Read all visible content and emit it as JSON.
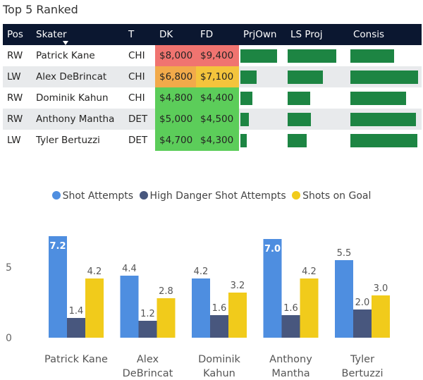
{
  "table_title": "Top 5 Ranked",
  "table": {
    "headers": [
      "Pos",
      "Skater",
      "T",
      "DK",
      "FD",
      "PrjOwn",
      "LS Proj",
      "Consis"
    ],
    "rows": [
      {
        "pos": "RW",
        "skater": "Patrick Kane",
        "team": "CHI",
        "dk": "$8,000",
        "fd": "$9,400",
        "dk_color": "#f07470",
        "fd_color": "#f07470",
        "prjown": 0.78,
        "lsproj": 0.78,
        "consis": 0.6
      },
      {
        "pos": "LW",
        "skater": "Alex DeBrincat",
        "team": "CHI",
        "dk": "$6,800",
        "fd": "$7,100",
        "dk_color": "#f2aa4a",
        "fd_color": "#f4c43c",
        "prjown": 0.34,
        "lsproj": 0.56,
        "consis": 0.93
      },
      {
        "pos": "RW",
        "skater": "Dominik Kahun",
        "team": "CHI",
        "dk": "$4,800",
        "fd": "$4,400",
        "dk_color": "#5ccd5a",
        "fd_color": "#5ccd5a",
        "prjown": 0.26,
        "lsproj": 0.36,
        "consis": 0.77
      },
      {
        "pos": "RW",
        "skater": "Anthony Mantha",
        "team": "DET",
        "dk": "$5,000",
        "fd": "$4,500",
        "dk_color": "#5ccd5a",
        "fd_color": "#5ccd5a",
        "prjown": 0.18,
        "lsproj": 0.37,
        "consis": 0.9
      },
      {
        "pos": "LW",
        "skater": "Tyler Bertuzzi",
        "team": "DET",
        "dk": "$4,700",
        "fd": "$4,300",
        "dk_color": "#5ccd5a",
        "fd_color": "#5ccd5a",
        "prjown": 0.13,
        "lsproj": 0.3,
        "consis": 0.92
      }
    ]
  },
  "chart_data": {
    "type": "bar",
    "title": "",
    "xlabel": "",
    "ylabel": "",
    "categories": [
      "Patrick Kane",
      "Alex DeBrincat",
      "Dominik Kahun",
      "Anthony Mantha",
      "Tyler Bertuzzi"
    ],
    "category_lines": [
      [
        "Patrick Kane"
      ],
      [
        "Alex",
        "DeBrincat"
      ],
      [
        "Dominik",
        "Kahun"
      ],
      [
        "Anthony",
        "Mantha"
      ],
      [
        "Tyler",
        "Bertuzzi"
      ]
    ],
    "series": [
      {
        "name": "Shot Attempts",
        "color": "#4e8ee0",
        "values": [
          7.2,
          4.4,
          4.2,
          7.0,
          5.5
        ]
      },
      {
        "name": "High Danger Shot Attempts",
        "color": "#48577e",
        "values": [
          1.4,
          1.2,
          1.6,
          1.6,
          2.0
        ]
      },
      {
        "name": "Shots on Goal",
        "color": "#f1cb1b",
        "values": [
          4.2,
          2.8,
          3.2,
          4.2,
          3.0
        ]
      }
    ],
    "value_labels": [
      [
        "7.2",
        "1.4",
        "4.2"
      ],
      [
        "4.4",
        "1.2",
        "2.8"
      ],
      [
        "4.2",
        "1.6",
        "3.2"
      ],
      [
        "7.0",
        "1.6",
        "4.2"
      ],
      [
        "5.5",
        "2.0",
        "3.0"
      ]
    ],
    "yticks": [
      "0",
      "5"
    ],
    "ylim": [
      0,
      7.6
    ],
    "legend_position": "top-center",
    "grid": false
  }
}
